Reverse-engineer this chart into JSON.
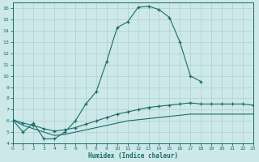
{
  "xlabel": "Humidex (Indice chaleur)",
  "bg_color": "#cce8e8",
  "line_color": "#1a6b6b",
  "grid_color": "#aed0d0",
  "curve1_x": [
    0,
    1,
    2,
    3,
    4,
    5,
    6,
    7,
    8,
    9,
    10,
    11,
    12,
    13,
    14,
    15,
    16,
    17,
    18
  ],
  "curve1_y": [
    6.1,
    5.0,
    5.8,
    4.4,
    4.4,
    5.0,
    6.0,
    7.5,
    8.6,
    11.3,
    14.3,
    14.8,
    16.1,
    16.2,
    15.9,
    15.2,
    13.0,
    10.0,
    9.5
  ],
  "curve2_x": [
    0,
    1,
    2,
    3,
    4,
    5,
    6,
    7,
    8,
    9,
    10,
    11,
    12,
    13,
    14,
    15,
    16,
    17,
    18,
    19,
    20,
    21,
    22,
    23
  ],
  "curve2_y": [
    6.1,
    5.8,
    5.6,
    5.3,
    5.1,
    5.2,
    5.4,
    5.7,
    6.0,
    6.3,
    6.6,
    6.8,
    7.0,
    7.2,
    7.3,
    7.4,
    7.5,
    7.6,
    7.5,
    7.5,
    7.5,
    7.5,
    7.5,
    7.4
  ],
  "curve3_x": [
    0,
    1,
    2,
    3,
    4,
    5,
    6,
    7,
    8,
    9,
    10,
    11,
    12,
    13,
    14,
    15,
    16,
    17,
    18,
    19,
    20,
    21,
    22,
    23
  ],
  "curve3_y": [
    6.1,
    5.6,
    5.3,
    5.0,
    4.7,
    4.8,
    5.0,
    5.2,
    5.4,
    5.6,
    5.8,
    6.0,
    6.1,
    6.2,
    6.3,
    6.4,
    6.5,
    6.6,
    6.6,
    6.6,
    6.6,
    6.6,
    6.6,
    6.6
  ],
  "xlim": [
    0,
    23
  ],
  "ylim": [
    4,
    16.5
  ],
  "yticks": [
    4,
    5,
    6,
    7,
    8,
    9,
    10,
    11,
    12,
    13,
    14,
    15,
    16
  ],
  "xticks": [
    0,
    1,
    2,
    3,
    4,
    5,
    6,
    7,
    8,
    9,
    10,
    11,
    12,
    13,
    14,
    15,
    16,
    17,
    18,
    19,
    20,
    21,
    22,
    23
  ],
  "xtick_labels": [
    "0",
    "1",
    "2",
    "3",
    "4",
    "5",
    "6",
    "7",
    "8",
    "9",
    "10",
    "11",
    "12",
    "13",
    "14",
    "15",
    "16",
    "17",
    "18",
    "19",
    "20",
    "21",
    "22",
    "23"
  ]
}
